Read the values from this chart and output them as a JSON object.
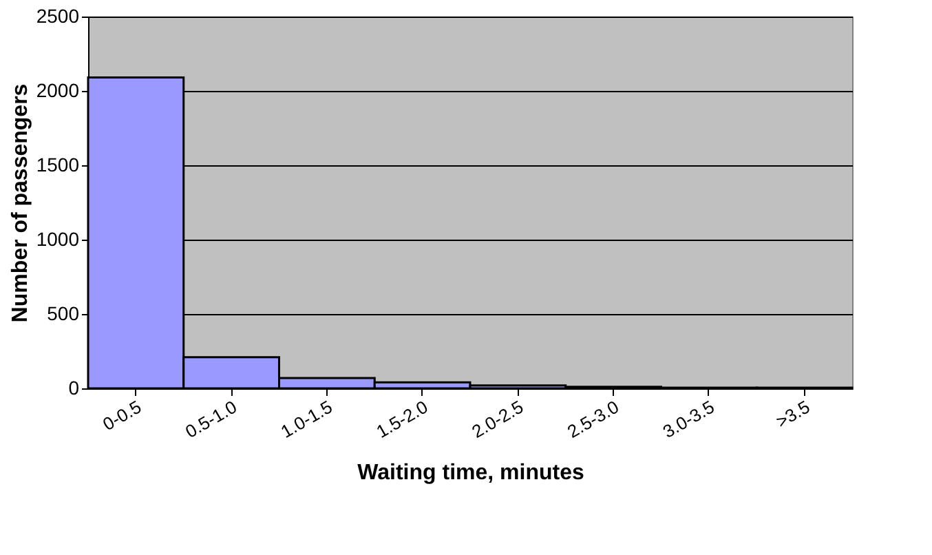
{
  "chart_data": {
    "type": "bar",
    "xlabel": "Waiting time, minutes",
    "ylabel": "Number of passengers",
    "categories": [
      "0-0.5",
      "0.5-1.0",
      "1.0-1.5",
      "1.5-2.0",
      "2.0-2.5",
      "2.5-3.0",
      "3.0-3.5",
      ">3.5"
    ],
    "values": [
      2090,
      210,
      70,
      40,
      20,
      10,
      5,
      5
    ],
    "color": "#9999ff",
    "ylim": [
      0,
      2500
    ],
    "yticks": [
      0,
      500,
      1000,
      1500,
      2000,
      2500
    ],
    "grid": "y"
  }
}
